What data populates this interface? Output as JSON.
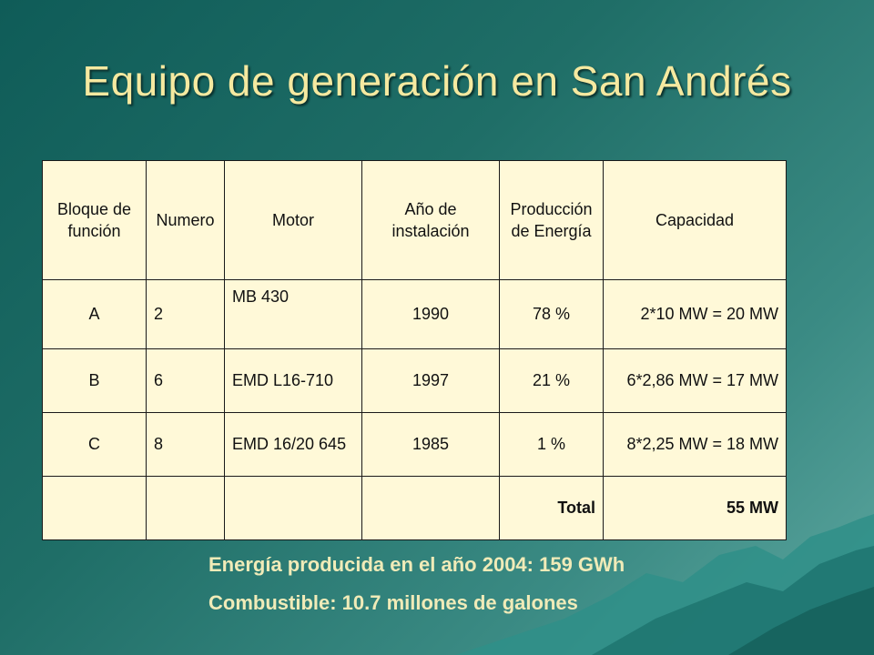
{
  "title": "Equipo de generación en San Andrés",
  "table": {
    "headers": [
      "Bloque de función",
      "Numero",
      "Motor",
      "Año de instalación",
      "Producción de Energía",
      "Capacidad"
    ],
    "rows": [
      {
        "bloque": "A",
        "numero": "2",
        "motor": "MB 430",
        "anio": "1990",
        "produccion": "78 %",
        "capacidad": "2*10 MW = 20 MW"
      },
      {
        "bloque": "B",
        "numero": "6",
        "motor": "EMD L16-710",
        "anio": "1997",
        "produccion": "21 %",
        "capacidad": "6*2,86 MW = 17 MW"
      },
      {
        "bloque": "C",
        "numero": "8",
        "motor": "EMD 16/20 645",
        "anio": "1985",
        "produccion": "1 %",
        "capacidad": "8*2,25 MW = 18 MW"
      }
    ],
    "total_label": "Total",
    "total_value": "55 MW"
  },
  "notes": {
    "energy": "Energía producida en el año 2004: 159 GWh",
    "fuel": "Combustible: 10.7 millones de galones"
  },
  "colors": {
    "title": "#f5e9a0",
    "table_bg": "#fff9d8",
    "background": "#2e7a73"
  }
}
